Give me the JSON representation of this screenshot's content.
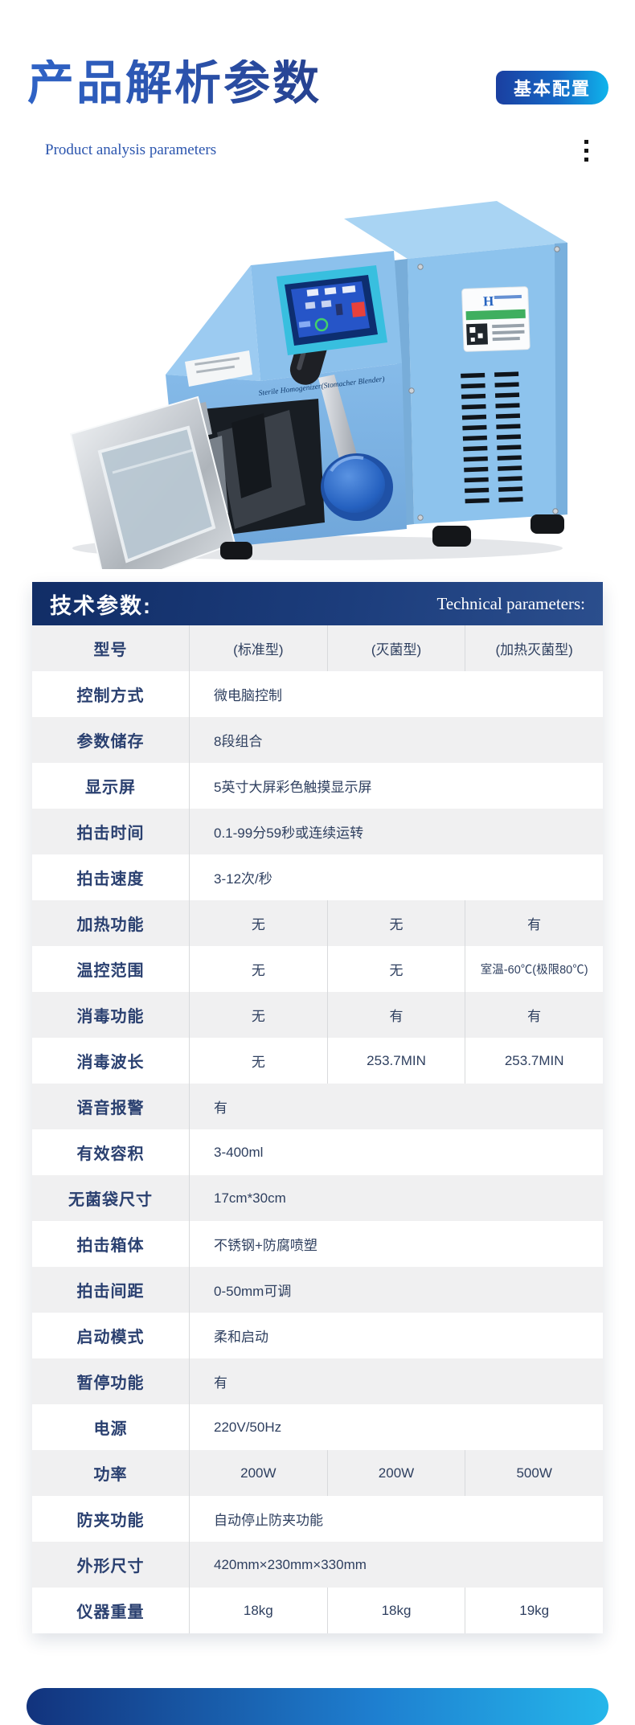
{
  "page": {
    "title": "产品解析参数",
    "subtitle": "Product analysis parameters",
    "badge": "基本配置"
  },
  "machine": {
    "screen_caption": "Sterile Homogenizer(Stomacher Blender)"
  },
  "table": {
    "header_left": "技术参数:",
    "header_right": "Technical parameters:",
    "rows": [
      {
        "label": "型号",
        "type": "cols",
        "values": [
          "(标准型)",
          "(灭菌型)",
          "(加热灭菌型)"
        ]
      },
      {
        "label": "控制方式",
        "type": "span",
        "value": "微电脑控制"
      },
      {
        "label": "参数储存",
        "type": "span",
        "value": "8段组合"
      },
      {
        "label": "显示屏",
        "type": "span",
        "value": "5英寸大屏彩色触摸显示屏"
      },
      {
        "label": "拍击时间",
        "type": "span",
        "value": "0.1-99分59秒或连续运转"
      },
      {
        "label": "拍击速度",
        "type": "span",
        "value": "3-12次/秒"
      },
      {
        "label": "加热功能",
        "type": "cols",
        "values": [
          "无",
          "无",
          "有"
        ]
      },
      {
        "label": "温控范围",
        "type": "cols",
        "values": [
          "无",
          "无",
          "室温-60℃(极限80℃)"
        ]
      },
      {
        "label": "消毒功能",
        "type": "cols",
        "values": [
          "无",
          "有",
          "有"
        ]
      },
      {
        "label": "消毒波长",
        "type": "cols",
        "values": [
          "无",
          "253.7MIN",
          "253.7MIN"
        ]
      },
      {
        "label": "语音报警",
        "type": "span",
        "value": "有"
      },
      {
        "label": "有效容积",
        "type": "span",
        "value": "3-400ml"
      },
      {
        "label": "无菌袋尺寸",
        "type": "span",
        "value": "17cm*30cm"
      },
      {
        "label": "拍击箱体",
        "type": "span",
        "value": "不锈钢+防腐喷塑"
      },
      {
        "label": "拍击间距",
        "type": "span",
        "value": "0-50mm可调"
      },
      {
        "label": "启动模式",
        "type": "span",
        "value": "柔和启动"
      },
      {
        "label": "暂停功能",
        "type": "span",
        "value": "有"
      },
      {
        "label": "电源",
        "type": "span",
        "value": "220V/50Hz"
      },
      {
        "label": "功率",
        "type": "cols",
        "values": [
          "200W",
          "200W",
          "500W"
        ]
      },
      {
        "label": "防夹功能",
        "type": "span",
        "value": "自动停止防夹功能"
      },
      {
        "label": "外形尺寸",
        "type": "span",
        "value": "420mm×230mm×330mm"
      },
      {
        "label": "仪器重量",
        "type": "cols",
        "values": [
          "18kg",
          "18kg",
          "19kg"
        ]
      }
    ]
  },
  "colors": {
    "title_blue": "#2b52a8",
    "badge_gradient_start": "#1a3fa0",
    "badge_gradient_end": "#0fb4ec",
    "table_header_navy": "#15316b",
    "row_gray": "#f0f0f1",
    "label_navy": "#2a4070",
    "machine_body_blue": "#8cc2ec",
    "screen_bezel_teal": "#38bfdf"
  }
}
